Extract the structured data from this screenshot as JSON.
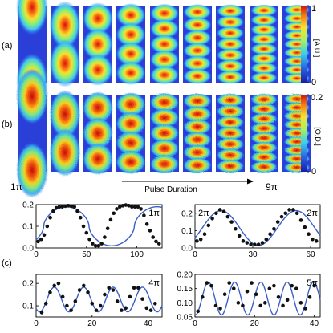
{
  "panel_labels": {
    "a": "(a)",
    "b": "(b)",
    "c": "(c)"
  },
  "panel_a": {
    "node_counts": [
      1,
      2,
      3,
      4,
      5,
      6,
      7,
      8,
      9
    ],
    "colorbar": {
      "label": "[A.U.]",
      "ticks": [
        "1",
        "0"
      ],
      "range": [
        0,
        1
      ]
    }
  },
  "panel_b": {
    "node_counts": [
      1,
      2,
      3,
      4,
      5,
      6,
      7,
      8,
      9
    ],
    "colorbar": {
      "label": "[O.D.]",
      "ticks": [
        "0.2",
        "0"
      ],
      "range": [
        0,
        0.2
      ]
    }
  },
  "annotations": {
    "left_pulse": "1π",
    "right_pulse": "9π",
    "arrow_label": "Pulse Duration"
  },
  "colors": {
    "fit_line": "#3a5fc8",
    "points": "#111111"
  },
  "chart_data": [
    {
      "type": "scatter",
      "annotation": "1π",
      "xlim": [
        0,
        125
      ],
      "ylim": [
        0,
        0.2
      ],
      "xticks": [
        "0",
        "50",
        "100"
      ],
      "yticks": [
        "0.0",
        "0.1",
        "0.2"
      ],
      "fit": {
        "period": 90,
        "center": 0.1,
        "amplitude": 0.09,
        "phase_x": 30,
        "shape": "flat-top"
      },
      "x": [
        2,
        5,
        8,
        11,
        14,
        17,
        20,
        23,
        26,
        29,
        32,
        35,
        38,
        41,
        44,
        47,
        50,
        53,
        56,
        59,
        62,
        65,
        68,
        71,
        74,
        77,
        80,
        83,
        86,
        89,
        92,
        95,
        98,
        101,
        104,
        107,
        110,
        113,
        116,
        119,
        122
      ],
      "y": [
        0.03,
        0.04,
        0.06,
        0.1,
        0.14,
        0.17,
        0.185,
        0.19,
        0.19,
        0.193,
        0.195,
        0.193,
        0.19,
        0.17,
        0.14,
        0.1,
        0.07,
        0.04,
        0.02,
        0.01,
        0.01,
        0.02,
        0.05,
        0.09,
        0.13,
        0.16,
        0.18,
        0.19,
        0.195,
        0.198,
        0.195,
        0.19,
        0.19,
        0.19,
        0.18,
        0.15,
        0.11,
        0.08,
        0.05,
        0.03,
        0.02
      ]
    },
    {
      "type": "scatter",
      "annotation": "2π",
      "side_label": "2π",
      "xlim": [
        0,
        65
      ],
      "ylim": [
        0,
        0.25
      ],
      "xticks": [
        "0",
        "30",
        "60"
      ],
      "yticks": [
        "0.0",
        "0.1",
        "0.2"
      ],
      "fit": {
        "period": 39,
        "center": 0.115,
        "amplitude": 0.1,
        "phase_x": 13.5,
        "shape": "sine"
      },
      "x": [
        1,
        3,
        5,
        7,
        9,
        11,
        13,
        15,
        17,
        19,
        21,
        23,
        25,
        27,
        29,
        31,
        33,
        35,
        37,
        39,
        41,
        43,
        45,
        47,
        49,
        51,
        53,
        55,
        57,
        59,
        61,
        63
      ],
      "y": [
        0.04,
        0.05,
        0.08,
        0.13,
        0.17,
        0.2,
        0.22,
        0.21,
        0.18,
        0.15,
        0.11,
        0.07,
        0.04,
        0.03,
        0.02,
        0.02,
        0.02,
        0.03,
        0.05,
        0.08,
        0.11,
        0.15,
        0.18,
        0.2,
        0.22,
        0.22,
        0.2,
        0.16,
        0.12,
        0.08,
        0.05,
        0.04
      ]
    },
    {
      "type": "scatter",
      "annotation": "4π",
      "xlim": [
        0,
        45
      ],
      "ylim": [
        0.05,
        0.24
      ],
      "xticks": [
        "0",
        "20",
        "40"
      ],
      "yticks": [
        "0.1",
        "0.2"
      ],
      "fit": {
        "period": 10.5,
        "center": 0.128,
        "amplitude": 0.055,
        "phase_x": 6.5,
        "shape": "sine"
      },
      "x": [
        2,
        3.5,
        5,
        6.5,
        8,
        9.5,
        11,
        12.5,
        14,
        15.5,
        17,
        18.5,
        20,
        21.5,
        23,
        24.5,
        26,
        27.5,
        29,
        30.5,
        32,
        33.5,
        35,
        36.5,
        38,
        39.5,
        41,
        42.5
      ],
      "y": [
        0.07,
        0.11,
        0.16,
        0.19,
        0.2,
        0.14,
        0.1,
        0.08,
        0.12,
        0.17,
        0.19,
        0.16,
        0.11,
        0.08,
        0.1,
        0.15,
        0.18,
        0.17,
        0.12,
        0.08,
        0.09,
        0.14,
        0.18,
        0.18,
        0.13,
        0.09,
        0.08,
        0.11
      ]
    },
    {
      "type": "scatter",
      "annotation": "5π",
      "xlim": [
        0,
        42
      ],
      "ylim": [
        0.05,
        0.2
      ],
      "xticks": [
        "0",
        "20",
        "40"
      ],
      "yticks": [
        "0.05",
        "0.10",
        "0.15",
        "0.20"
      ],
      "fit": {
        "period": 8.8,
        "center": 0.115,
        "amplitude": 0.058,
        "phase_x": 4.5,
        "shape": "sine"
      },
      "x": [
        1,
        2.5,
        4,
        5.5,
        7,
        8.5,
        10,
        11.5,
        13,
        14.5,
        16,
        17.5,
        19,
        20.5,
        22,
        23.5,
        25,
        26.5,
        28,
        29.5,
        31,
        32.5,
        34,
        35.5,
        37,
        38.5,
        40
      ],
      "y": [
        0.07,
        0.12,
        0.17,
        0.16,
        0.09,
        0.08,
        0.13,
        0.17,
        0.15,
        0.1,
        0.09,
        0.14,
        0.17,
        0.13,
        0.09,
        0.1,
        0.15,
        0.16,
        0.12,
        0.09,
        0.11,
        0.16,
        0.15,
        0.1,
        0.08,
        0.12,
        0.16
      ]
    }
  ]
}
